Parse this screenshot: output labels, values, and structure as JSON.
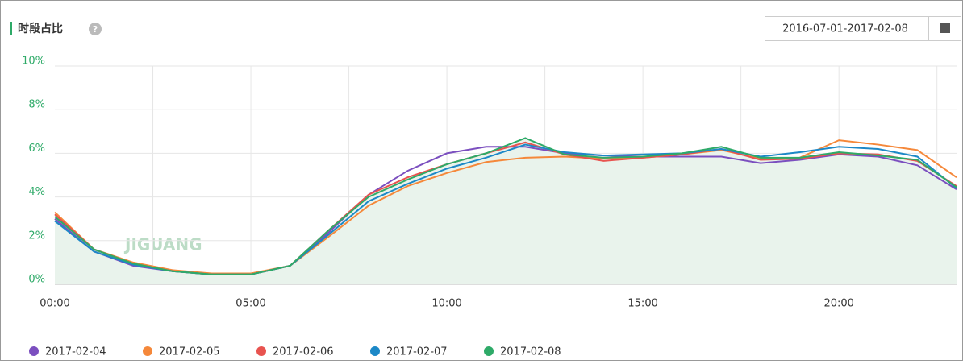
{
  "header": {
    "title": "时段占比",
    "date_range": "2016-07-01-2017-02-08"
  },
  "watermark": "JIGUANG",
  "chart_data": {
    "type": "line",
    "categories": [
      "00:00",
      null,
      null,
      null,
      null,
      "05:00",
      null,
      null,
      null,
      null,
      "10:00",
      null,
      null,
      null,
      null,
      "15:00",
      null,
      null,
      null,
      null,
      "20:00",
      null,
      null,
      null
    ],
    "ylim": [
      0,
      10
    ],
    "yticks": [
      {
        "value": 0,
        "label": "0%"
      },
      {
        "value": 2,
        "label": "2%"
      },
      {
        "value": 4,
        "label": "4%"
      },
      {
        "value": 6,
        "label": "6%"
      },
      {
        "value": 8,
        "label": "8%"
      },
      {
        "value": 10,
        "label": "10%"
      }
    ],
    "grid": true,
    "legend": "bottom",
    "area_color": "#e9f3ec",
    "series": [
      {
        "name": "2017-02-04",
        "color": "#7b4fbf",
        "values": [
          3.0,
          1.5,
          0.85,
          0.6,
          0.45,
          0.45,
          0.85,
          2.4,
          4.1,
          5.2,
          6.0,
          6.3,
          6.3,
          6.0,
          5.9,
          5.85,
          5.85,
          5.85,
          5.55,
          5.7,
          5.95,
          5.85,
          5.45,
          4.35
        ]
      },
      {
        "name": "2017-02-05",
        "color": "#f5883a",
        "values": [
          3.3,
          1.6,
          1.0,
          0.65,
          0.5,
          0.5,
          0.85,
          2.2,
          3.6,
          4.5,
          5.1,
          5.6,
          5.8,
          5.85,
          5.75,
          5.8,
          5.95,
          6.15,
          5.75,
          5.8,
          6.6,
          6.4,
          6.15,
          4.9
        ]
      },
      {
        "name": "2017-02-06",
        "color": "#e8534f",
        "values": [
          3.2,
          1.6,
          0.95,
          0.6,
          0.45,
          0.45,
          0.85,
          2.5,
          4.1,
          4.9,
          5.5,
          6.0,
          6.5,
          5.95,
          5.65,
          5.8,
          5.95,
          6.2,
          5.7,
          5.75,
          6.0,
          5.95,
          5.65,
          4.5
        ]
      },
      {
        "name": "2017-02-07",
        "color": "#1c88c7",
        "values": [
          2.9,
          1.5,
          0.9,
          0.6,
          0.45,
          0.45,
          0.85,
          2.3,
          3.8,
          4.6,
          5.3,
          5.8,
          6.4,
          6.05,
          5.9,
          5.95,
          6.0,
          6.2,
          5.85,
          6.05,
          6.3,
          6.2,
          5.85,
          4.4
        ]
      },
      {
        "name": "2017-02-08",
        "color": "#2eaa68",
        "values": [
          3.1,
          1.6,
          0.95,
          0.6,
          0.45,
          0.45,
          0.85,
          2.5,
          4.0,
          4.8,
          5.5,
          6.0,
          6.7,
          5.95,
          5.8,
          5.85,
          6.0,
          6.3,
          5.8,
          5.8,
          6.05,
          5.9,
          5.7,
          4.45
        ]
      }
    ]
  }
}
